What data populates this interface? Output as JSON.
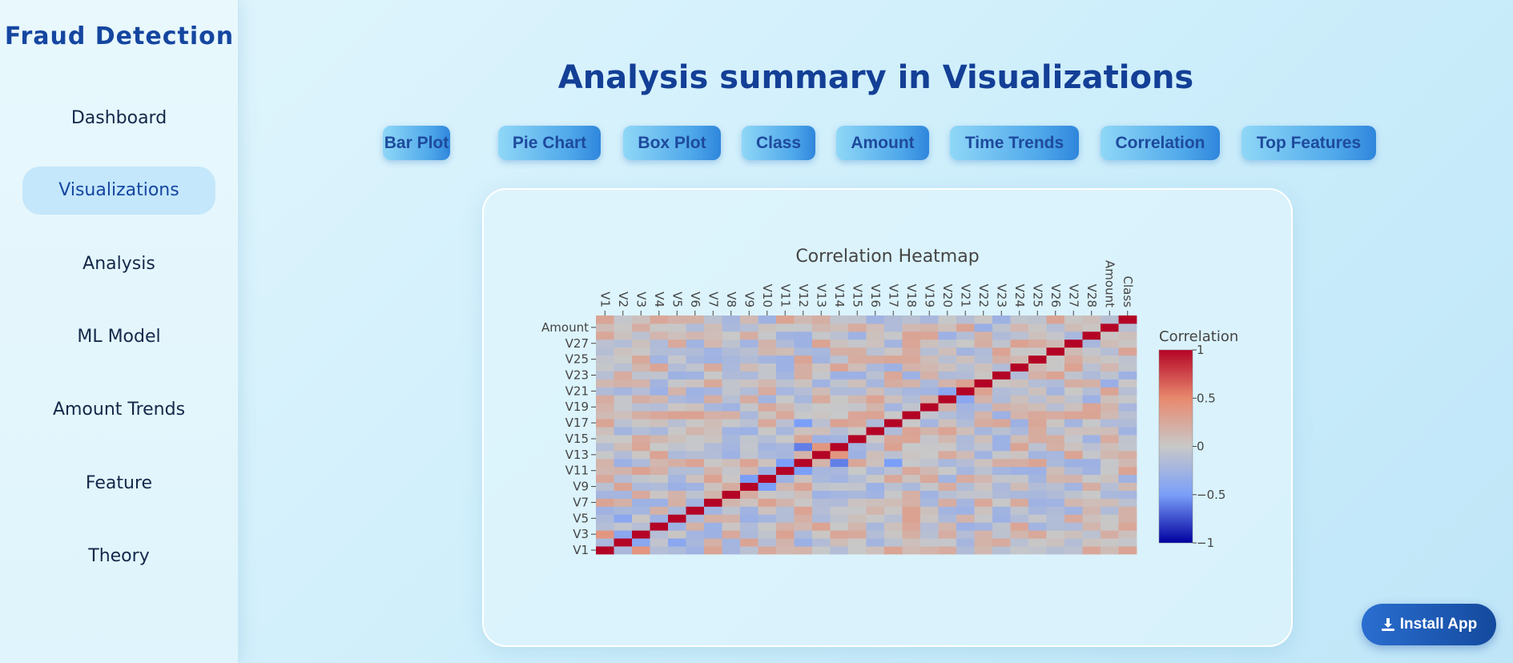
{
  "sidebar": {
    "brand": "Fraud Detection",
    "items": [
      {
        "label": "Dashboard",
        "active": false
      },
      {
        "label": "Visualizations",
        "active": true
      },
      {
        "label": "Analysis",
        "active": false
      },
      {
        "label": "ML Model",
        "active": false
      },
      {
        "label": "Amount Trends",
        "active": false
      },
      {
        "label": "Feature",
        "active": false
      },
      {
        "label": "Theory",
        "active": false
      }
    ]
  },
  "main": {
    "title": "Analysis summary in Visualizations",
    "tabs": [
      "Bar Plot",
      "Pie Chart",
      "Box Plot",
      "Class",
      "Amount",
      "Time Trends",
      "Correlation",
      "Top Features"
    ]
  },
  "install": {
    "label": "Install App",
    "icon": "download-icon"
  },
  "chart_data": {
    "type": "heatmap",
    "title": "Correlation Heatmap",
    "x_labels": [
      "V1",
      "V2",
      "V3",
      "V4",
      "V5",
      "V6",
      "V7",
      "V8",
      "V9",
      "V10",
      "V11",
      "V12",
      "V13",
      "V14",
      "V15",
      "V16",
      "V17",
      "V18",
      "V19",
      "V20",
      "V21",
      "V22",
      "V23",
      "V24",
      "V25",
      "V26",
      "V27",
      "V28",
      "Amount",
      "Class"
    ],
    "y_tick_labels": [
      "V1",
      "V3",
      "V5",
      "V7",
      "V9",
      "V11",
      "V13",
      "V15",
      "V17",
      "V19",
      "V21",
      "V23",
      "V25",
      "V27",
      "Amount"
    ],
    "colorbar": {
      "title": "Correlation",
      "range": [
        -1,
        1
      ],
      "ticks": [
        "1",
        "0.5",
        "0",
        "−0.5",
        "−1"
      ],
      "colors": [
        "#b40426",
        "#e8896e",
        "#c8c8c8",
        "#7b9ff9",
        "#0000a0"
      ]
    },
    "diagonal_value": 1,
    "strong_correlations": [
      {
        "x": "V2",
        "y": "V3",
        "value": -0.4
      },
      {
        "x": "V11",
        "y": "V12",
        "value": -0.5
      },
      {
        "x": "V12",
        "y": "V14",
        "value": -0.6
      },
      {
        "x": "V13",
        "y": "V14",
        "value": 0.4
      },
      {
        "x": "V9",
        "y": "V10",
        "value": -0.5
      },
      {
        "x": "V20",
        "y": "V21",
        "value": -0.4
      },
      {
        "x": "V21",
        "y": "V22",
        "value": 0.3
      },
      {
        "x": "V1",
        "y": "V3",
        "value": 0.4
      },
      {
        "x": "V12",
        "y": "V17",
        "value": -0.5
      },
      {
        "x": "V14",
        "y": "V17",
        "value": 0.3
      },
      {
        "x": "V7",
        "y": "V10",
        "value": 0.3
      },
      {
        "x": "V2",
        "y": "V5",
        "value": -0.4
      }
    ]
  }
}
